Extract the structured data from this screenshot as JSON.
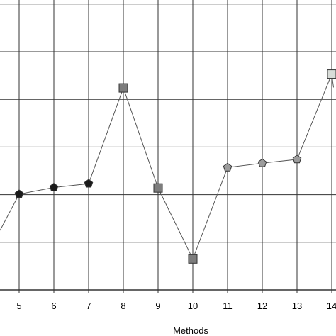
{
  "chart_data": {
    "type": "line",
    "xlabel": "Methods",
    "ylabel": "",
    "x_ticks": [
      "5",
      "6",
      "7",
      "8",
      "9",
      "10",
      "11",
      "12",
      "13",
      "14"
    ],
    "x_range": [
      4.45,
      14.05
    ],
    "y_range": [
      0,
      6
    ],
    "grid": true,
    "points": [
      {
        "x": 4.45,
        "y": 1.25,
        "marker": "none",
        "fill": "#000000"
      },
      {
        "x": 5,
        "y": 2.01,
        "marker": "pentagon",
        "fill": "#1a1a1a"
      },
      {
        "x": 6,
        "y": 2.15,
        "marker": "pentagon",
        "fill": "#1a1a1a"
      },
      {
        "x": 7,
        "y": 2.23,
        "marker": "pentagon",
        "fill": "#1a1a1a"
      },
      {
        "x": 8,
        "y": 4.24,
        "marker": "square",
        "fill": "#7d7d7d"
      },
      {
        "x": 9,
        "y": 2.14,
        "marker": "square",
        "fill": "#7d7d7d"
      },
      {
        "x": 10,
        "y": 0.65,
        "marker": "square",
        "fill": "#7d7d7d"
      },
      {
        "x": 11,
        "y": 2.57,
        "marker": "pentagon",
        "fill": "#9c9c9c"
      },
      {
        "x": 12,
        "y": 2.66,
        "marker": "pentagon",
        "fill": "#9c9c9c"
      },
      {
        "x": 13,
        "y": 2.74,
        "marker": "pentagon",
        "fill": "#9c9c9c"
      },
      {
        "x": 14,
        "y": 4.53,
        "marker": "square",
        "fill": "#d8dcd8"
      },
      {
        "x": 14.05,
        "y": 4.25,
        "marker": "none",
        "fill": "#000000"
      }
    ],
    "colors": {
      "grid": "#333333",
      "line": "#555555",
      "marker_stroke": "#333333"
    }
  }
}
